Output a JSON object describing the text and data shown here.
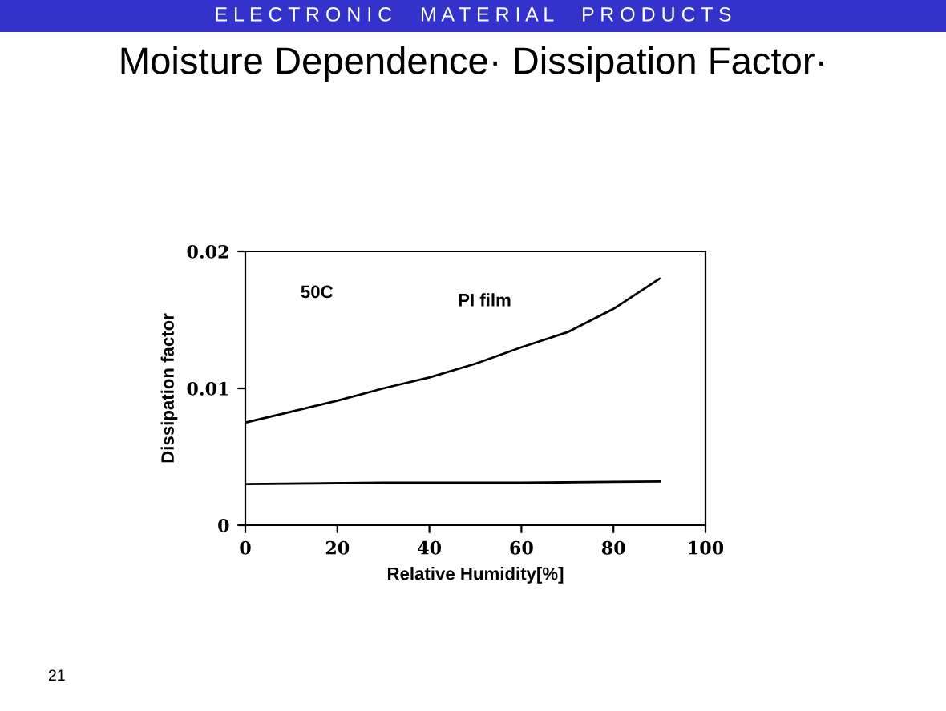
{
  "chart_data": {
    "type": "line",
    "title": "Moisture Dependence· Dissipation Factor·",
    "subtitle": "E L E C T R O N I C     M A T E R I A L     P R O D U C T S",
    "xlabel": "Relative Humidity[%]",
    "ylabel": "Dissipation factor",
    "xlim": [
      0,
      100
    ],
    "xticks": [
      0,
      20,
      40,
      60,
      80,
      100
    ],
    "ylim": [
      0,
      0.02
    ],
    "yticks": [
      0,
      0.01,
      0.02
    ],
    "grid": false,
    "legend": false,
    "marker": "none",
    "line_style": "solid",
    "series": [
      {
        "name": "PI film",
        "color": "#000000",
        "x": [
          0,
          10,
          20,
          30,
          40,
          50,
          60,
          70,
          80,
          90
        ],
        "values": [
          0.0075,
          0.0083,
          0.0091,
          0.01,
          0.0108,
          0.0118,
          0.013,
          0.0141,
          0.0158,
          0.018
        ]
      },
      {
        "color": "#000000",
        "x": [
          0,
          30,
          60,
          90
        ],
        "values": [
          0.003,
          0.0031,
          0.0031,
          0.0032
        ]
      }
    ],
    "annotations": [
      "50C",
      "21"
    ]
  }
}
